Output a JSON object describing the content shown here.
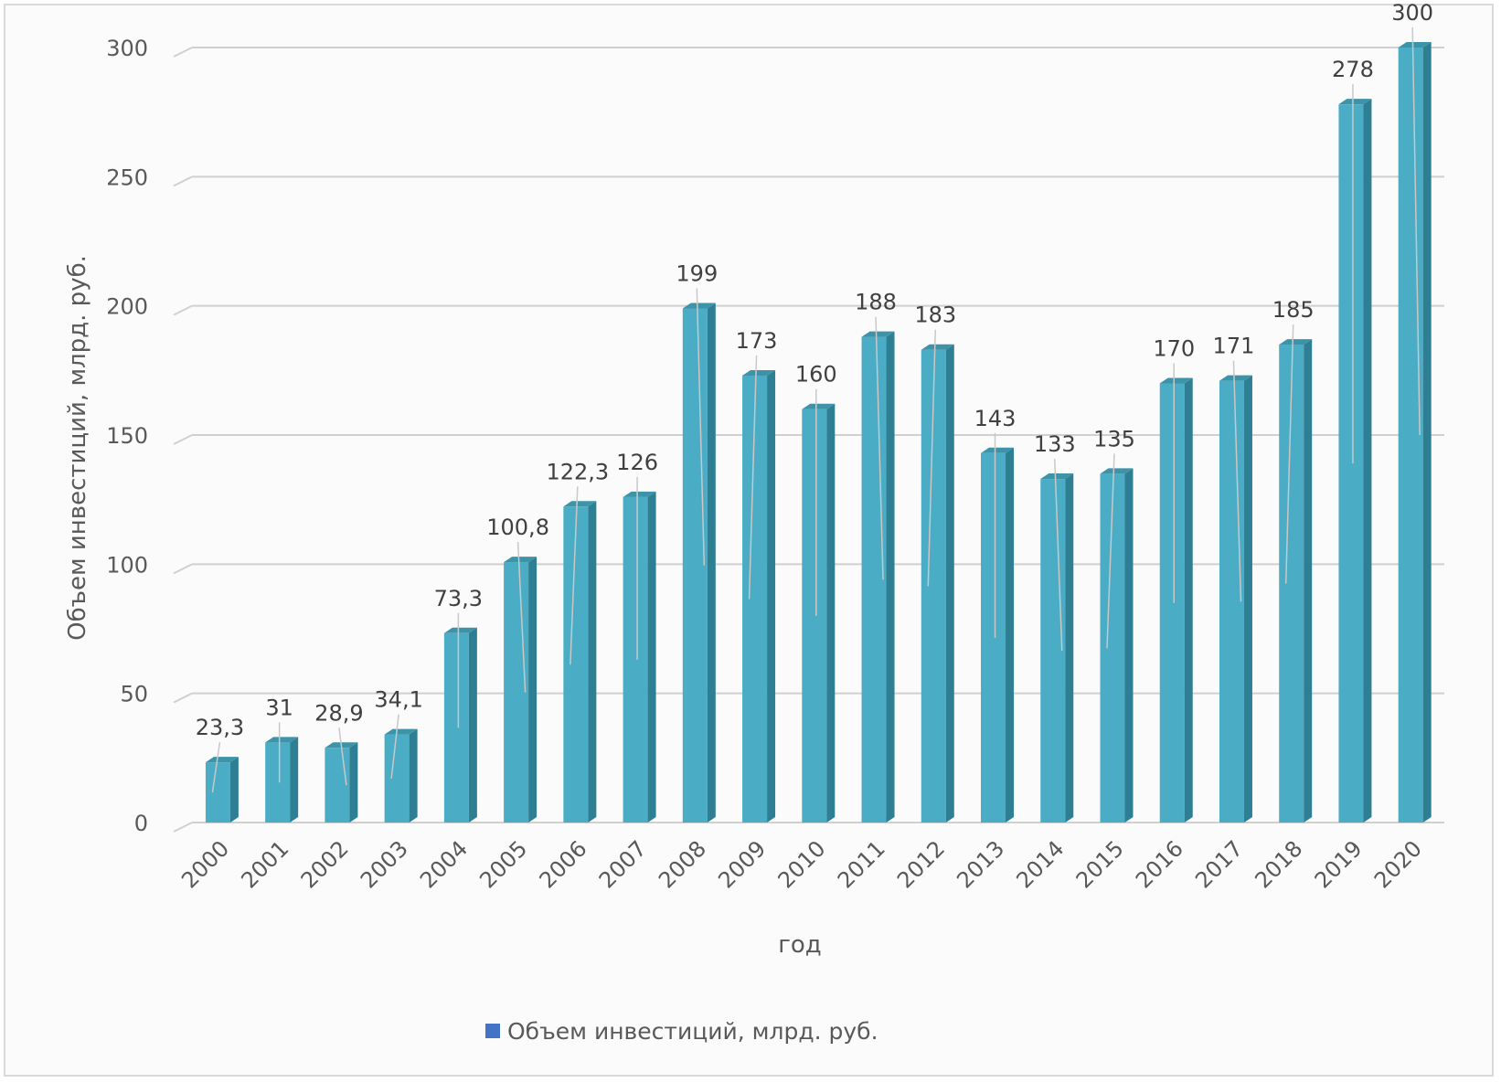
{
  "chart_data": {
    "type": "bar",
    "title": "",
    "xlabel": "год",
    "ylabel": "Объем инвестиций, млрд. руб.",
    "ylim": [
      0,
      300
    ],
    "yticks": [
      0,
      50,
      100,
      150,
      200,
      250,
      300
    ],
    "grid": true,
    "legend_position": "bottom",
    "categories": [
      "2000",
      "2001",
      "2002",
      "2003",
      "2004",
      "2005",
      "2006",
      "2007",
      "2008",
      "2009",
      "2010",
      "2011",
      "2012",
      "2013",
      "2014",
      "2015",
      "2016",
      "2017",
      "2018",
      "2019",
      "2020"
    ],
    "series": [
      {
        "name": "Объем инвестиций, млрд. руб.",
        "color": "#4bacc6",
        "legend_color": "#4472c4",
        "values": [
          23.3,
          31,
          28.9,
          34.1,
          73.3,
          100.8,
          122.3,
          126,
          199,
          173,
          160,
          188,
          183,
          143,
          133,
          135,
          170,
          171,
          185,
          278,
          300
        ],
        "labels": [
          "23,3",
          "31",
          "28,9",
          "34,1",
          "73,3",
          "100,8",
          "122,3",
          "126",
          "199",
          "173",
          "160",
          "188",
          "183",
          "143",
          "133",
          "135",
          "170",
          "171",
          "185",
          "278",
          "300"
        ]
      }
    ]
  }
}
